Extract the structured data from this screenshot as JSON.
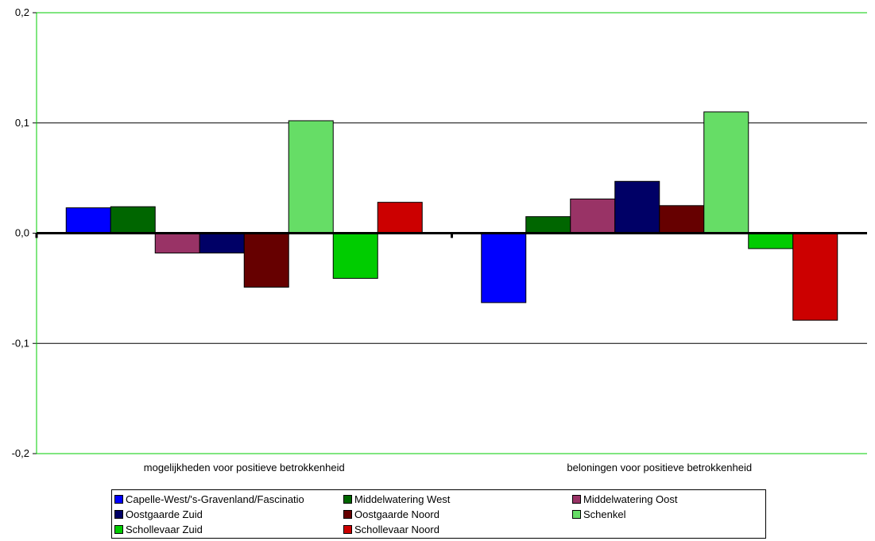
{
  "chart_data": {
    "type": "bar",
    "categories": [
      "mogelijkheden voor positieve betrokkenheid",
      "beloningen voor positieve betrokkenheid"
    ],
    "series": [
      {
        "name": "Capelle-West/'s-Gravenland/Fascinatio",
        "color": "#0000ff",
        "values": [
          0.023,
          -0.063
        ]
      },
      {
        "name": "Middelwatering West",
        "color": "#006600",
        "values": [
          0.024,
          0.015
        ]
      },
      {
        "name": "Middelwatering Oost",
        "color": "#993366",
        "values": [
          -0.018,
          0.031
        ]
      },
      {
        "name": "Oostgaarde Zuid",
        "color": "#000066",
        "values": [
          -0.018,
          0.047
        ]
      },
      {
        "name": "Oostgaarde Noord",
        "color": "#660000",
        "values": [
          -0.049,
          0.025
        ]
      },
      {
        "name": "Schenkel",
        "color": "#66dd66",
        "values": [
          0.102,
          0.11
        ]
      },
      {
        "name": "Schollevaar Zuid",
        "color": "#00cc00",
        "values": [
          -0.041,
          -0.014
        ]
      },
      {
        "name": "Schollevaar Noord",
        "color": "#cc0000",
        "values": [
          0.028,
          -0.079
        ]
      }
    ],
    "yticks": [
      "0,2",
      "0,1",
      "0,0",
      "-0,1",
      "-0,2"
    ],
    "ylim": [
      -0.2,
      0.2
    ],
    "grid": true,
    "gridline_color": "#00cc00",
    "legend_position": "bottom"
  }
}
